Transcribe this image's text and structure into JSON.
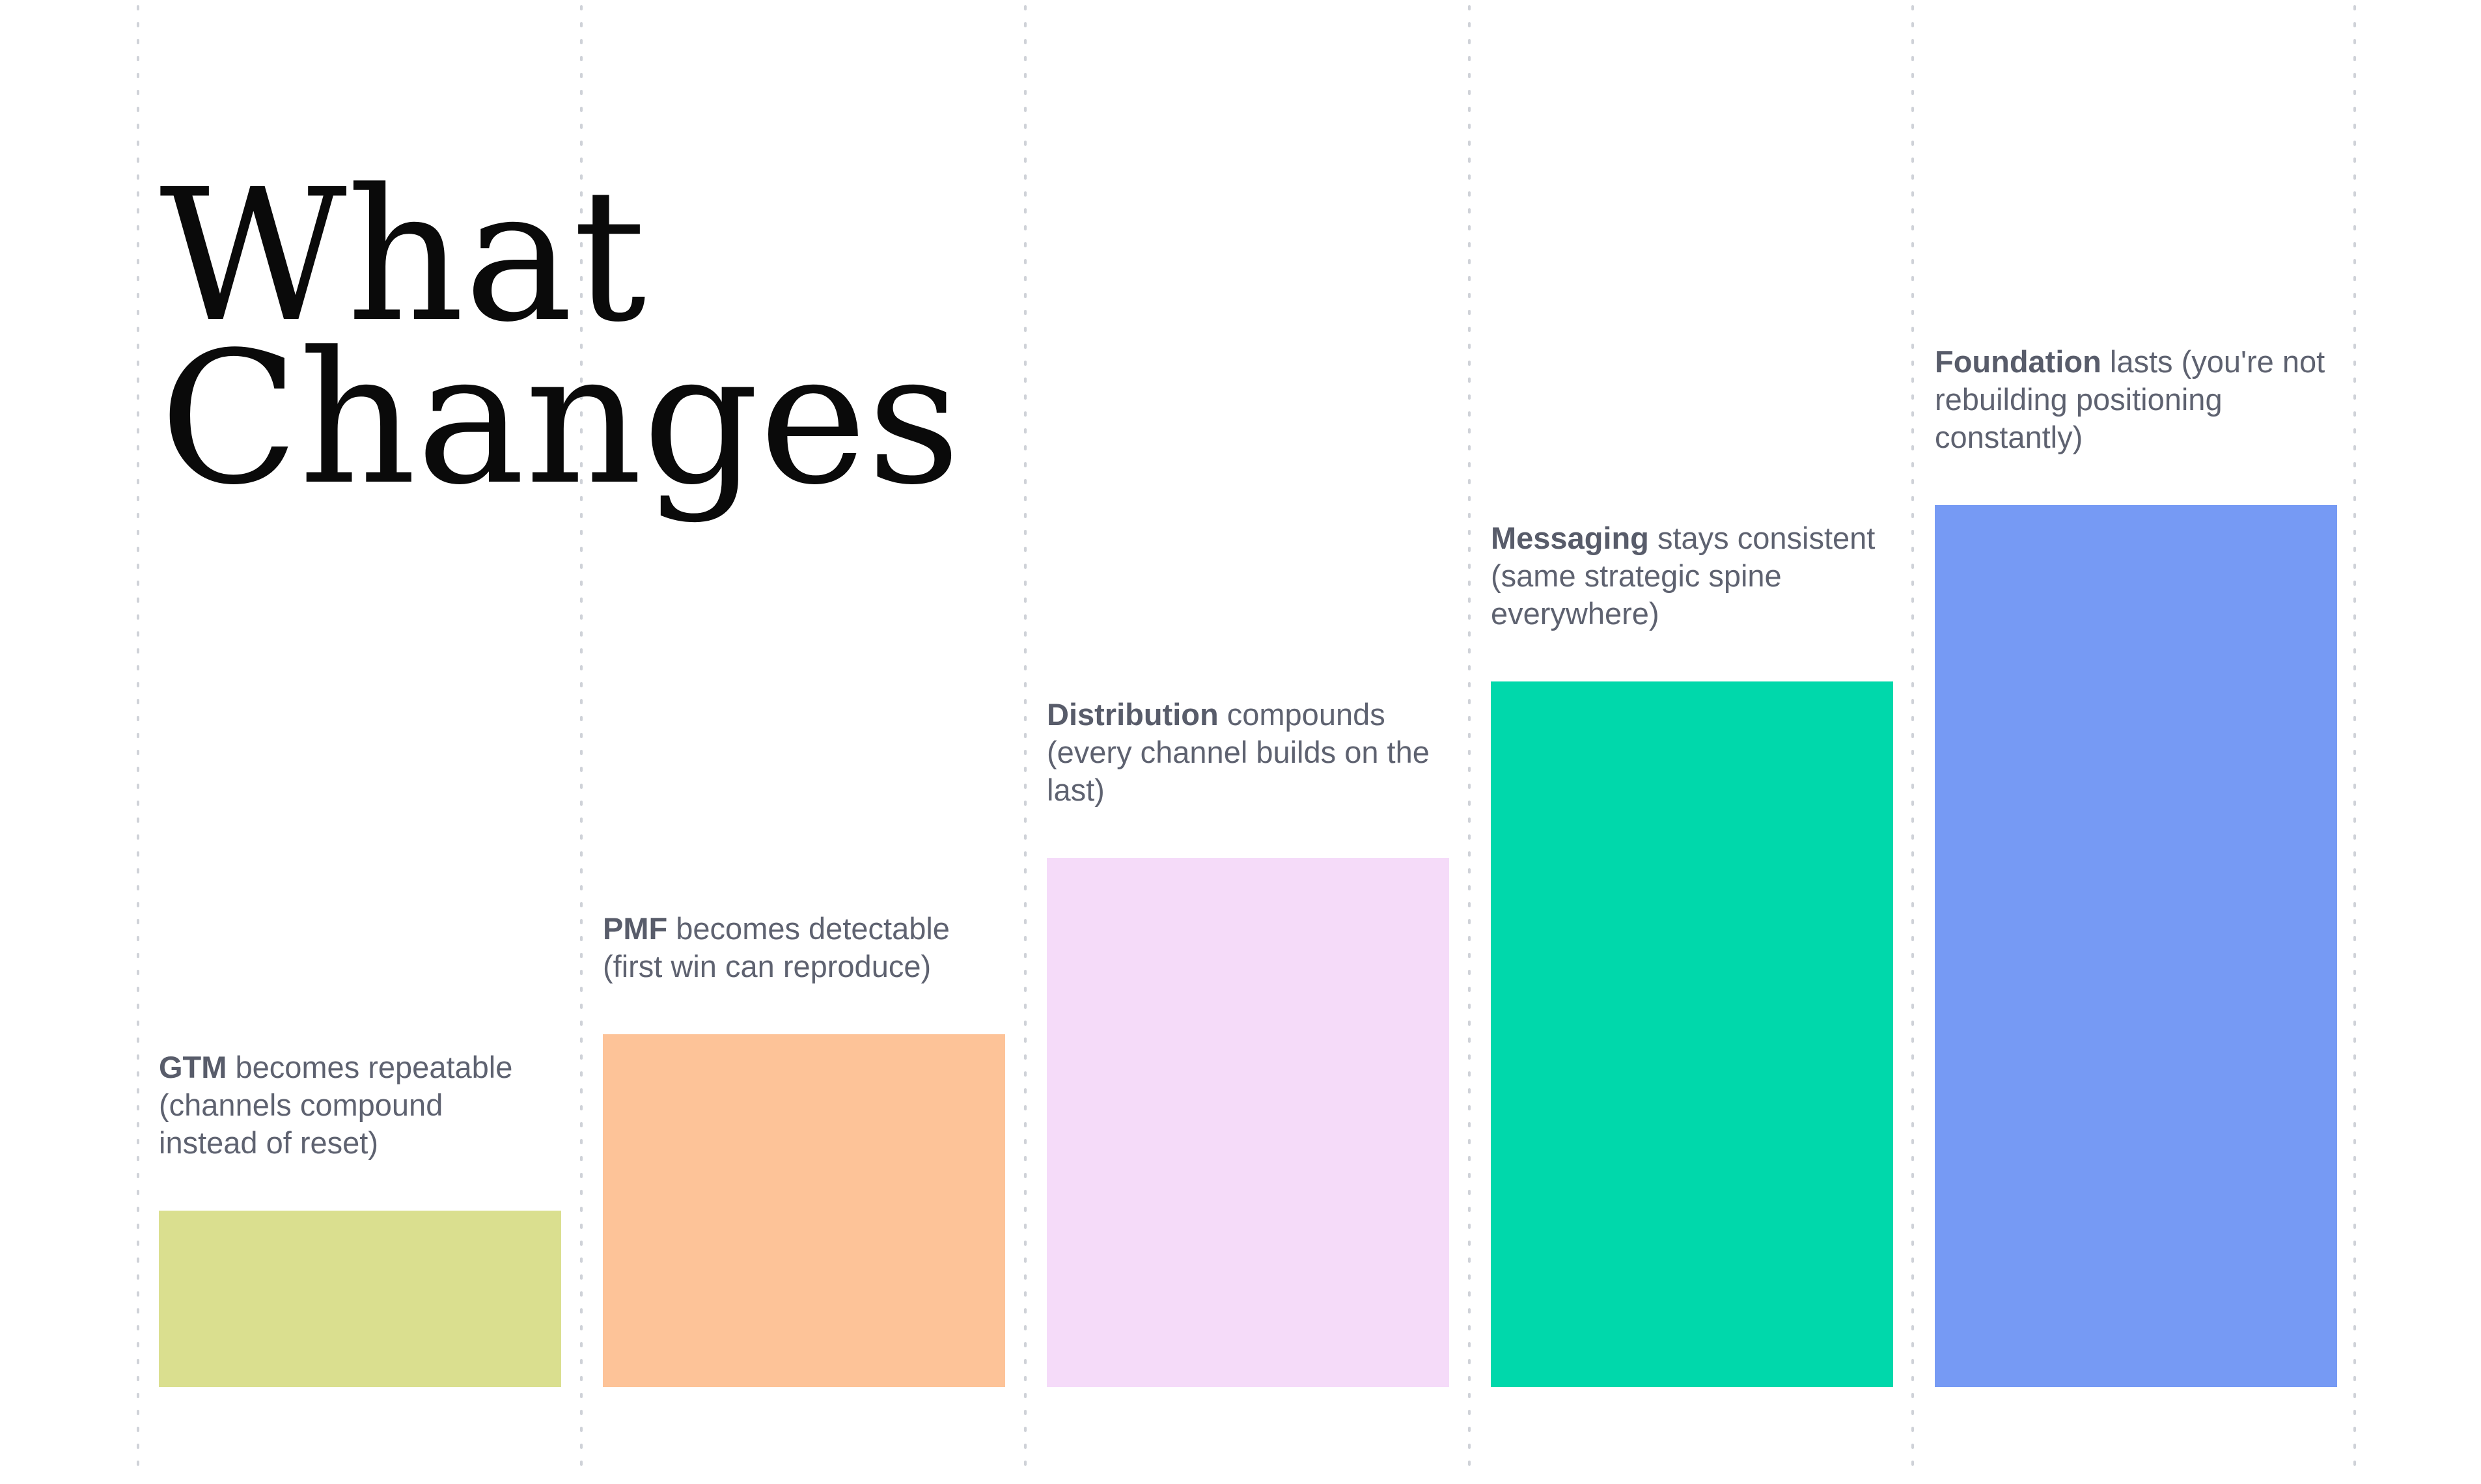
{
  "title": {
    "lines": [
      "What",
      "Changes"
    ]
  },
  "chart_data": {
    "type": "bar",
    "title": "What Changes",
    "categories": [
      "GTM",
      "PMF",
      "Distribution",
      "Messaging",
      "Foundation"
    ],
    "values": [
      1,
      2,
      3,
      4,
      5
    ],
    "ylim": [
      0,
      5
    ],
    "grid": true,
    "legend": "none",
    "bars": [
      {
        "key": "GTM",
        "bold": "GTM",
        "rest": " becomes repeatable",
        "lines": [
          "(channels compound",
          "instead of reset)"
        ],
        "color": "#dadf8f",
        "value": 1
      },
      {
        "key": "PMF",
        "bold": "PMF",
        "rest": " becomes detectable",
        "lines": [
          "(first win can reproduce)"
        ],
        "color": "#fdc398",
        "value": 2
      },
      {
        "key": "Distribution",
        "bold": "Distribution",
        "rest": " compounds",
        "lines": [
          "(every channel builds on the",
          "last)"
        ],
        "color": "#f5dbf9",
        "value": 3
      },
      {
        "key": "Messaging",
        "bold": "Messaging",
        "rest": " stays consistent",
        "lines": [
          "(same strategic spine",
          "everywhere)"
        ],
        "color": "#00d8ab",
        "value": 4
      },
      {
        "key": "Foundation",
        "bold": "Foundation",
        "rest": " lasts (you're not",
        "lines": [
          "rebuilding positioning",
          "constantly)"
        ],
        "color": "#769af4",
        "value": 5
      }
    ]
  }
}
